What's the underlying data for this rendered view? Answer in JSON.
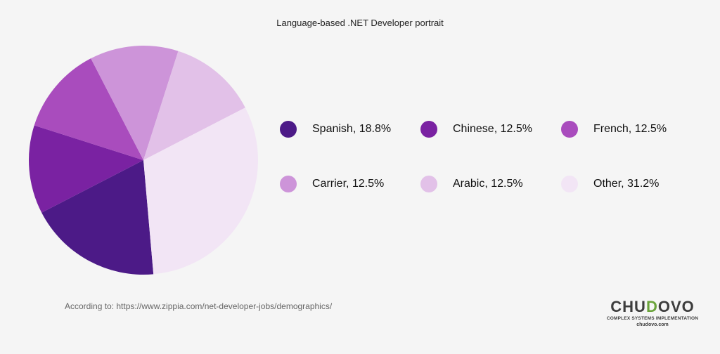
{
  "chart_data": {
    "type": "pie",
    "title": "Language-based .NET Developer portrait",
    "slices": [
      {
        "label": "Spanish",
        "value": 18.8,
        "color": "#4c1a87",
        "legend": "Spanish, 18.8%"
      },
      {
        "label": "Chinese",
        "value": 12.5,
        "color": "#7a22a2",
        "legend": "Chinese, 12.5%"
      },
      {
        "label": "French",
        "value": 12.5,
        "color": "#a94cbd",
        "legend": "French, 12.5%"
      },
      {
        "label": "Carrier",
        "value": 12.5,
        "color": "#cd94d9",
        "legend": "Carrier, 12.5%"
      },
      {
        "label": "Arabic",
        "value": 12.5,
        "color": "#e2c1e8",
        "legend": "Arabic, 12.5%"
      },
      {
        "label": "Other",
        "value": 31.2,
        "color": "#f2e5f5",
        "legend": "Other, 31.2%"
      }
    ],
    "legend_position": "right"
  },
  "source_text": "According to: https://www.zippia.com/net-developer-jobs/demographics/",
  "brand": {
    "name_part1": "CHU",
    "name_accent": "D",
    "name_part2": "OVO",
    "tagline": "COMPLEX SYSTEMS IMPLEMENTATION",
    "url": "chudovo.com"
  }
}
